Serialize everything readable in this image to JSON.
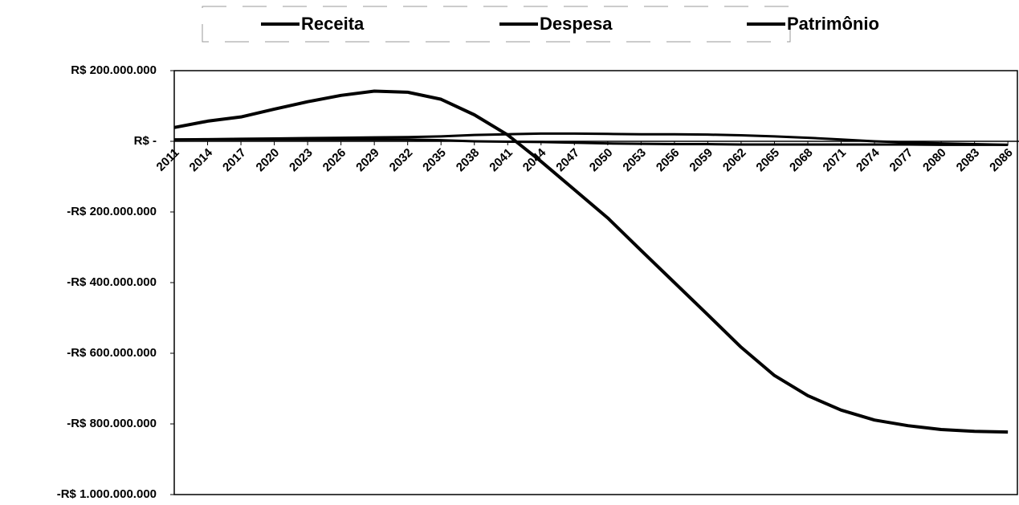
{
  "chart_data": {
    "type": "line",
    "x": [
      2011,
      2014,
      2017,
      2020,
      2023,
      2026,
      2029,
      2032,
      2035,
      2038,
      2041,
      2044,
      2047,
      2050,
      2053,
      2056,
      2059,
      2062,
      2065,
      2068,
      2071,
      2074,
      2077,
      2080,
      2083,
      2086
    ],
    "xlim": [
      2011,
      2087
    ],
    "xticks": [
      2011,
      2014,
      2017,
      2020,
      2023,
      2026,
      2029,
      2032,
      2035,
      2038,
      2041,
      2044,
      2047,
      2050,
      2053,
      2056,
      2059,
      2062,
      2065,
      2068,
      2071,
      2074,
      2077,
      2080,
      2083,
      2086
    ],
    "ylim": [
      -1000000000,
      200000000
    ],
    "yticks": [
      {
        "value": 200000000,
        "label": "R$ 200.000.000"
      },
      {
        "value": 0,
        "label": "R$ -"
      },
      {
        "value": -200000000,
        "label": "-R$ 200.000.000"
      },
      {
        "value": -400000000,
        "label": "-R$ 400.000.000"
      },
      {
        "value": -600000000,
        "label": "-R$ 600.000.000"
      },
      {
        "value": -800000000,
        "label": "-R$ 800.000.000"
      },
      {
        "value": -1000000000,
        "label": "-R$ 1.000.000.000"
      }
    ],
    "series": [
      {
        "name": "Receita",
        "color": "#000000",
        "values": [
          5000000,
          6000000,
          7000000,
          8000000,
          9000000,
          10000000,
          11000000,
          12000000,
          14000000,
          18000000,
          20000000,
          22000000,
          22000000,
          21000000,
          20000000,
          20000000,
          19000000,
          17000000,
          14000000,
          10000000,
          5000000,
          0,
          -3000000,
          -6000000,
          -8000000,
          -10000000
        ]
      },
      {
        "name": "Despesa",
        "color": "#000000",
        "values": [
          5000000,
          5000000,
          5000000,
          5000000,
          5000000,
          5000000,
          5000000,
          5000000,
          3000000,
          0,
          -1000000,
          -2000000,
          -4000000,
          -6000000,
          -7000000,
          -8000000,
          -8000000,
          -9000000,
          -9000000,
          -9000000,
          -9000000,
          -9000000,
          -9000000,
          -10000000,
          -10000000,
          -10000000
        ]
      },
      {
        "name": "Patrimônio",
        "color": "#000000",
        "values": [
          39000000,
          57000000,
          69000000,
          91000000,
          112000000,
          130000000,
          142000000,
          139000000,
          119000000,
          75000000,
          18000000,
          -57000000,
          -137000000,
          -217000000,
          -309000000,
          -400000000,
          -491000000,
          -583000000,
          -663000000,
          -720000000,
          -761000000,
          -789000000,
          -805000000,
          -816000000,
          -821000000,
          -823000000
        ]
      }
    ]
  }
}
